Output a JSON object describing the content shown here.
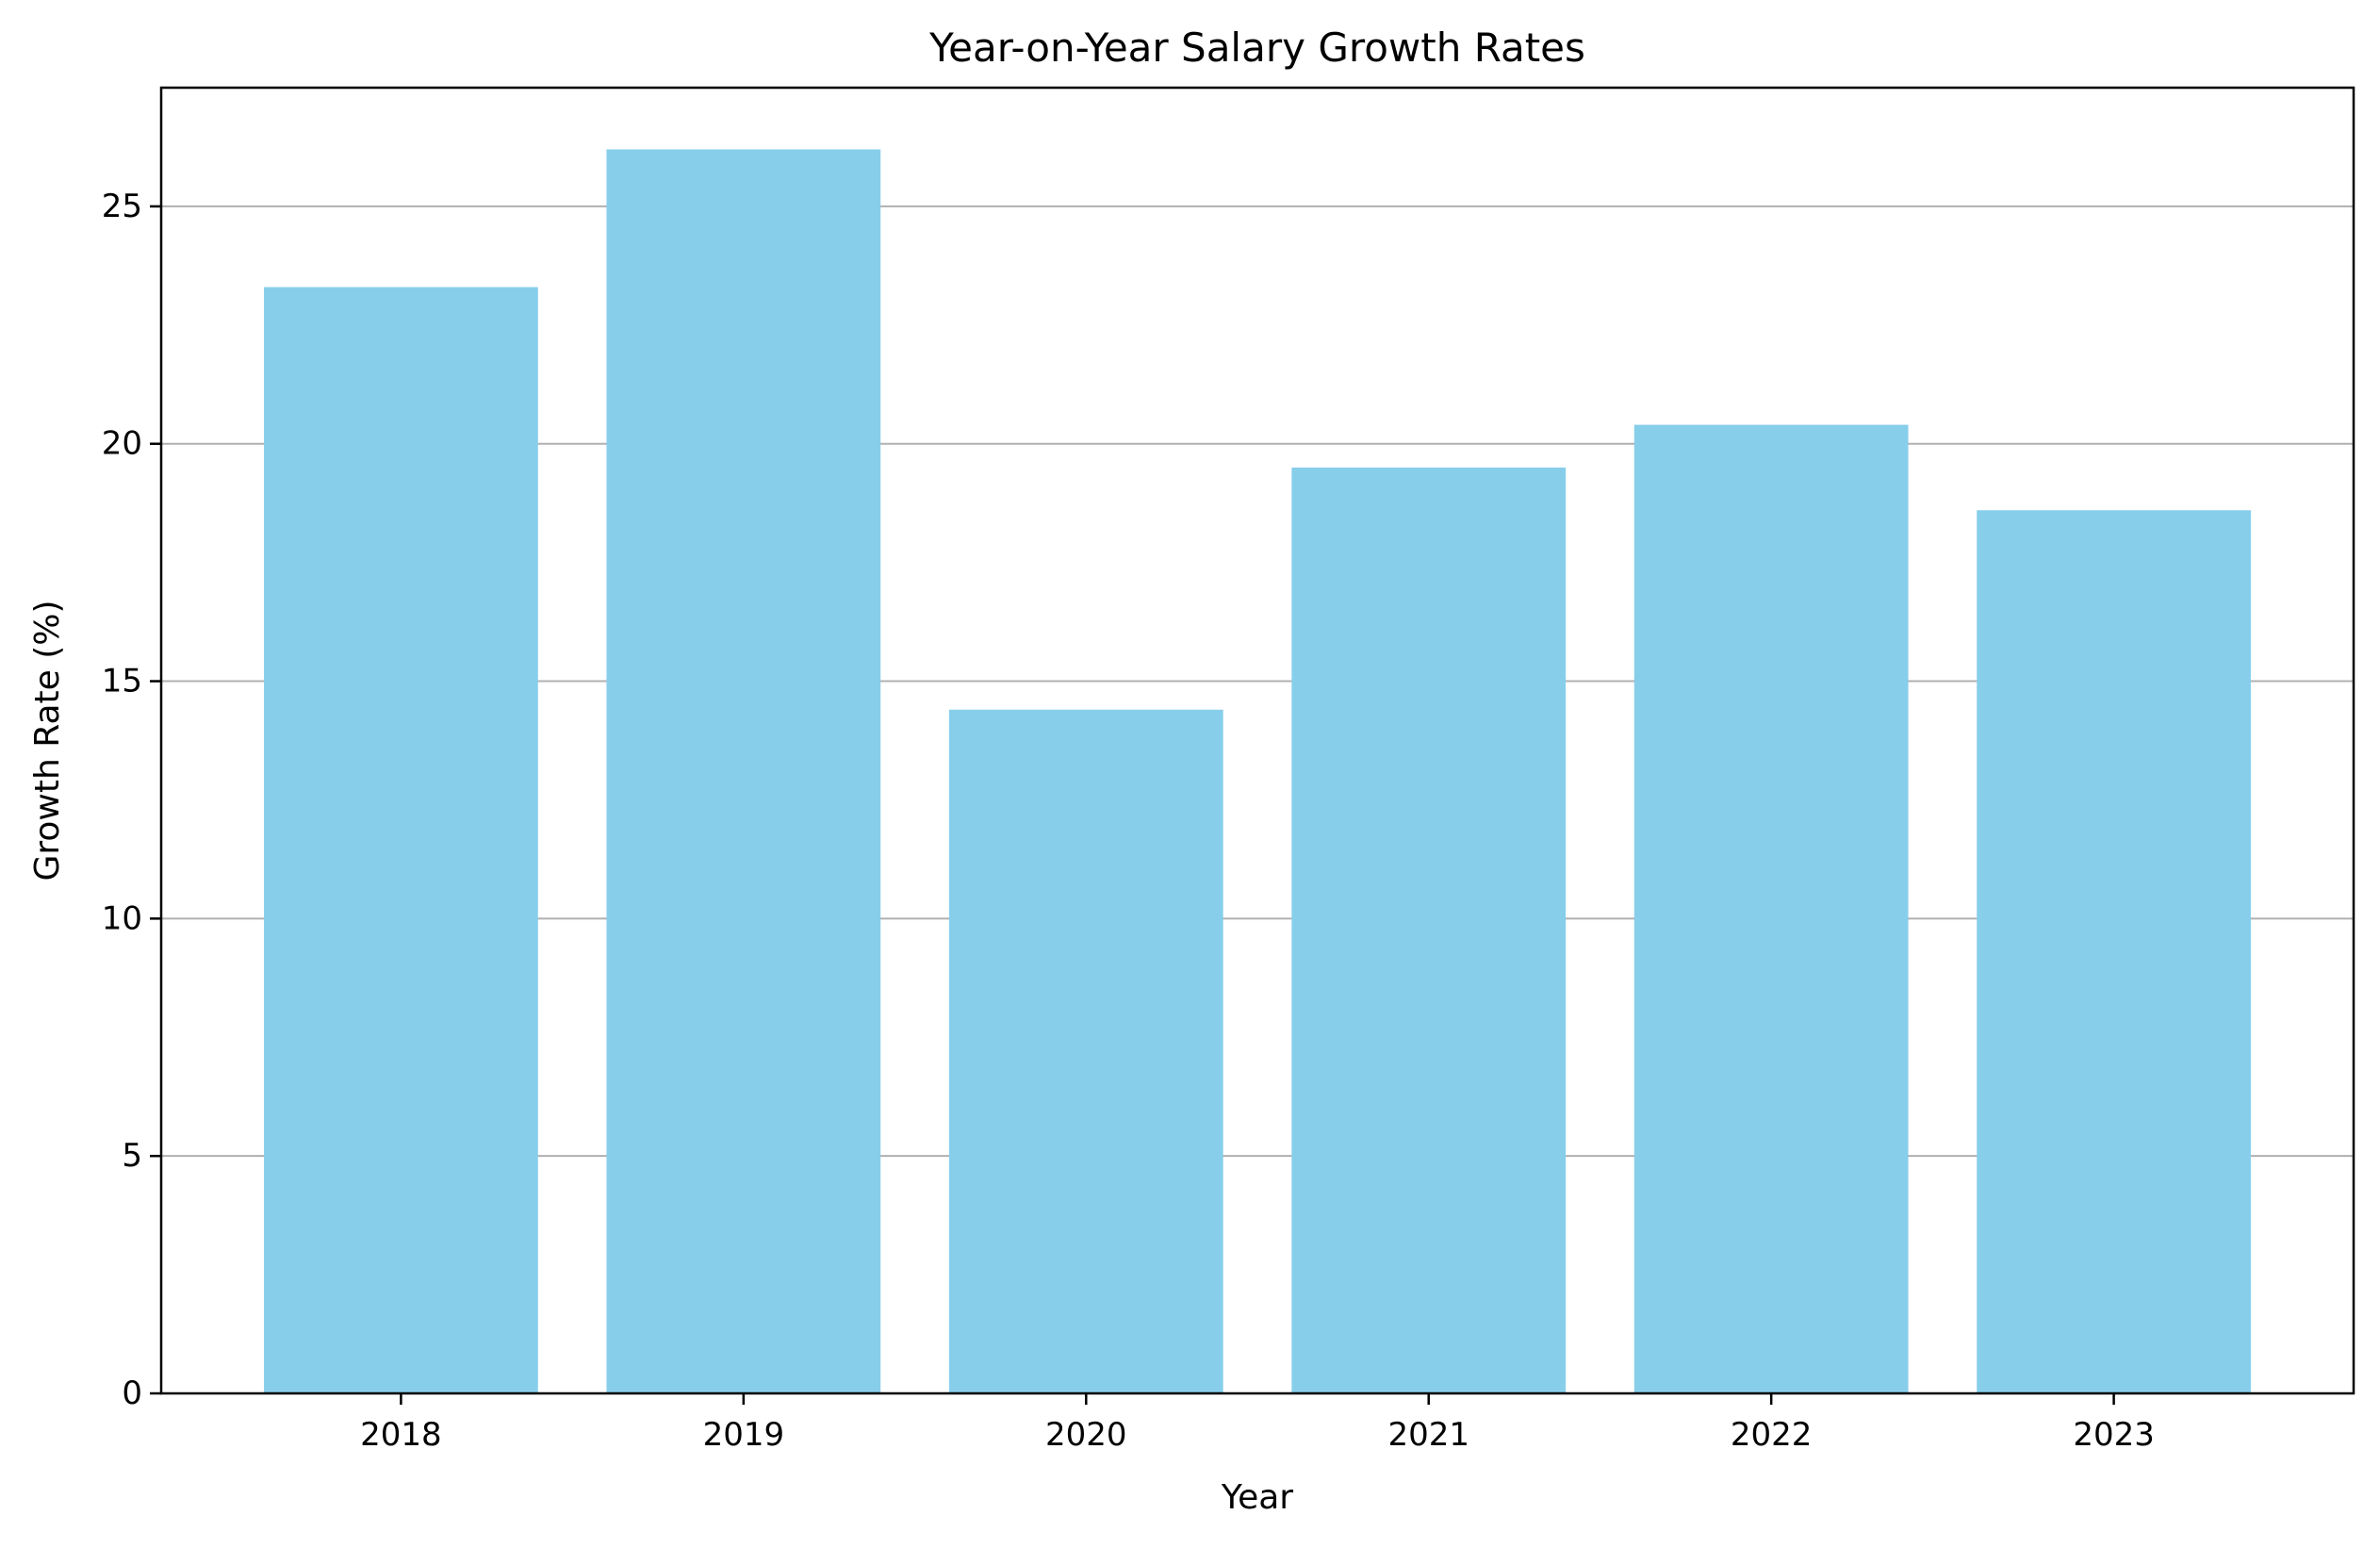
{
  "chart_data": {
    "type": "bar",
    "title": "Year-on-Year Salary Growth Rates",
    "xlabel": "Year",
    "ylabel": "Growth Rate (%)",
    "categories": [
      "2018",
      "2019",
      "2020",
      "2021",
      "2022",
      "2023"
    ],
    "values": [
      23.3,
      26.2,
      14.4,
      19.5,
      20.4,
      18.6
    ],
    "ylim": [
      0,
      27.5
    ],
    "yticks": [
      0,
      5,
      10,
      15,
      20,
      25
    ],
    "ytick_labels": [
      "0",
      "5",
      "10",
      "15",
      "20",
      "25"
    ],
    "grid": "y-axis major",
    "legend": "none",
    "colors": {
      "bar": "#87CEEB",
      "grid": "#b0b0b0",
      "axis": "#000000"
    }
  }
}
